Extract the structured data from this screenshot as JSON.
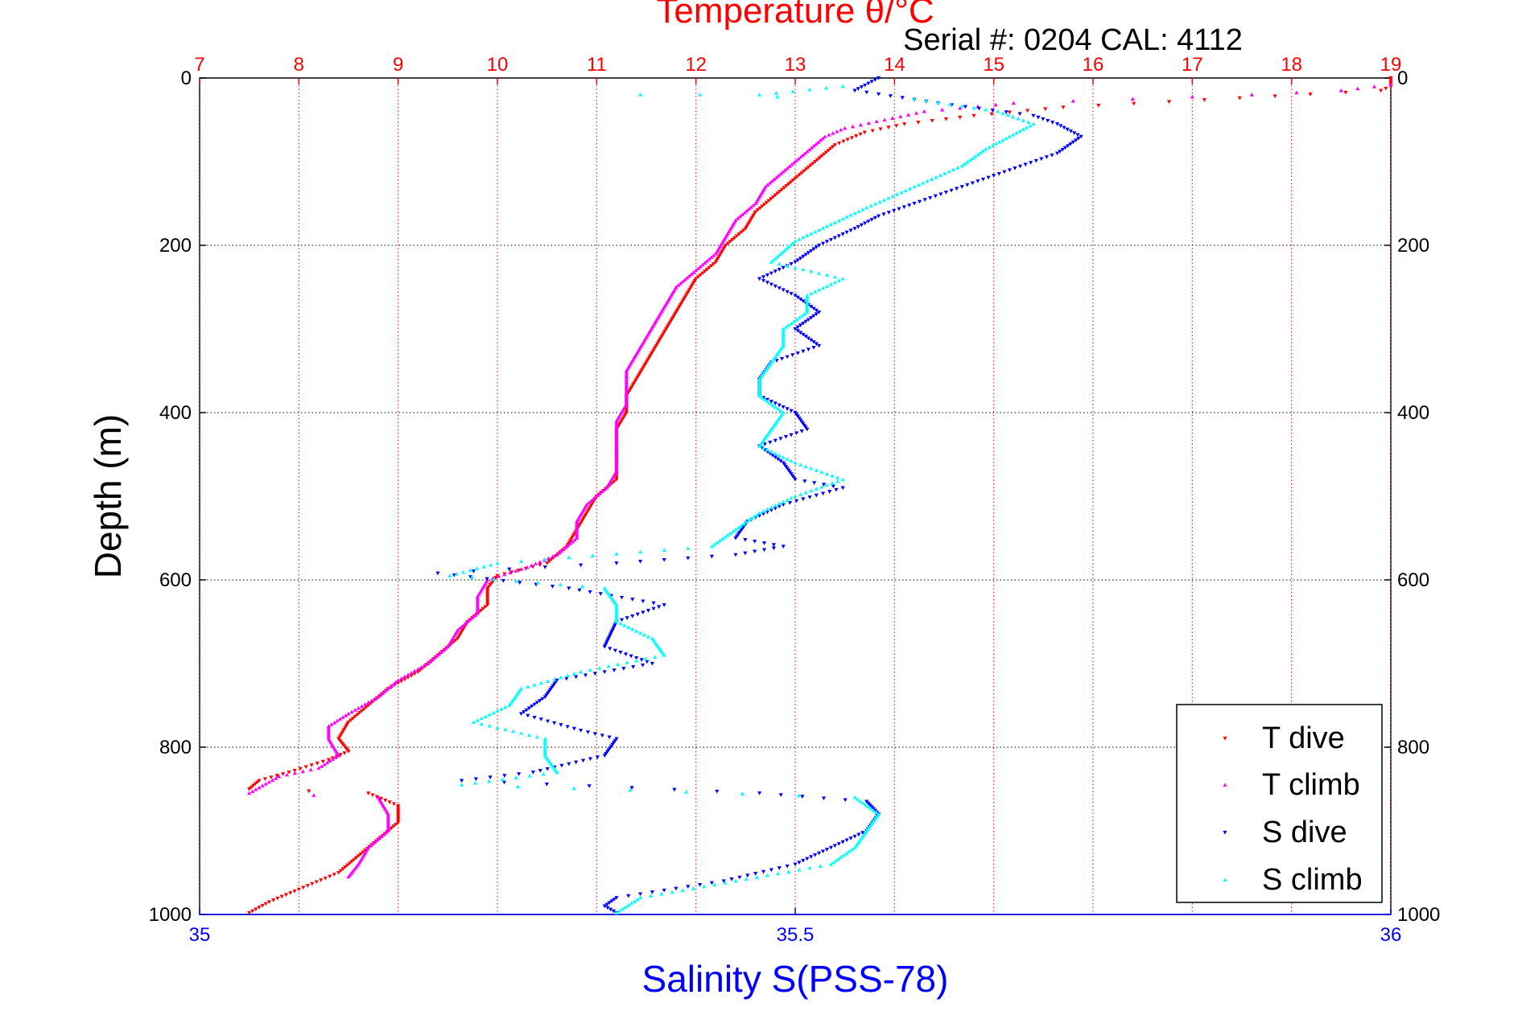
{
  "chart_data": {
    "type": "scatter",
    "title": "Temperature θ/°C",
    "subtitle": "Serial #: 0204  CAL: 4112",
    "ylabel": "Depth (m)",
    "xlabel": "Salinity S(PSS-78)",
    "top_axis": {
      "label": "Temperature θ/°C",
      "lim": [
        7,
        19
      ],
      "ticks": [
        "7",
        "8",
        "9",
        "10",
        "11",
        "12",
        "13",
        "14",
        "15",
        "16",
        "17",
        "18",
        "19"
      ],
      "color": "#ff0000"
    },
    "bottom_axis": {
      "label": "Salinity S(PSS-78)",
      "lim": [
        35,
        36
      ],
      "ticks": [
        "35",
        "35.5",
        "36"
      ],
      "color": "#0000ff"
    },
    "y_axis": {
      "lim": [
        0,
        1000
      ],
      "reversed": true,
      "ticks": [
        "0",
        "200",
        "400",
        "600",
        "800",
        "1000"
      ]
    },
    "grid": true,
    "legend": {
      "placement": "bottom-right",
      "entries": [
        "T dive",
        "T climb",
        "S dive",
        "S climb"
      ]
    },
    "series": [
      {
        "name": "T dive",
        "axis": "temperature",
        "color": "#ff0000",
        "marker": "triangle-down",
        "points": [
          [
            19,
            0
          ],
          [
            19,
            10
          ],
          [
            18.9,
            15
          ],
          [
            15.7,
            35
          ],
          [
            14.8,
            45
          ],
          [
            14.1,
            55
          ],
          [
            13.7,
            65
          ],
          [
            13.4,
            80
          ],
          [
            13.2,
            100
          ],
          [
            13.0,
            120
          ],
          [
            12.8,
            140
          ],
          [
            12.6,
            160
          ],
          [
            12.5,
            180
          ],
          [
            12.3,
            200
          ],
          [
            12.2,
            220
          ],
          [
            12.0,
            240
          ],
          [
            11.9,
            260
          ],
          [
            11.8,
            280
          ],
          [
            11.7,
            300
          ],
          [
            11.6,
            320
          ],
          [
            11.5,
            340
          ],
          [
            11.4,
            360
          ],
          [
            11.3,
            380
          ],
          [
            11.3,
            400
          ],
          [
            11.2,
            420
          ],
          [
            11.2,
            440
          ],
          [
            11.2,
            460
          ],
          [
            11.2,
            480
          ],
          [
            11.0,
            500
          ],
          [
            10.9,
            520
          ],
          [
            10.8,
            540
          ],
          [
            10.7,
            560
          ],
          [
            10.5,
            580
          ],
          [
            10.0,
            595
          ],
          [
            9.9,
            610
          ],
          [
            9.9,
            630
          ],
          [
            9.7,
            650
          ],
          [
            9.6,
            670
          ],
          [
            9.4,
            690
          ],
          [
            9.2,
            710
          ],
          [
            8.9,
            730
          ],
          [
            8.7,
            750
          ],
          [
            8.5,
            770
          ],
          [
            8.4,
            790
          ],
          [
            8.5,
            805
          ],
          [
            8.3,
            815
          ],
          [
            7.9,
            830
          ],
          [
            7.6,
            840
          ],
          [
            7.5,
            850
          ],
          [
            8.7,
            855
          ],
          [
            9.0,
            870
          ],
          [
            9.0,
            890
          ],
          [
            8.8,
            910
          ],
          [
            8.6,
            930
          ],
          [
            8.4,
            950
          ],
          [
            8.0,
            970
          ],
          [
            7.7,
            985
          ],
          [
            7.5,
            998
          ]
        ]
      },
      {
        "name": "T climb",
        "axis": "temperature",
        "color": "#ff00ff",
        "marker": "triangle-up",
        "points": [
          [
            19,
            8
          ],
          [
            18.5,
            15
          ],
          [
            17.6,
            20
          ],
          [
            16.4,
            25
          ],
          [
            15.2,
            30
          ],
          [
            14.3,
            40
          ],
          [
            13.9,
            50
          ],
          [
            13.5,
            60
          ],
          [
            13.3,
            70
          ],
          [
            13.1,
            90
          ],
          [
            12.9,
            110
          ],
          [
            12.7,
            130
          ],
          [
            12.6,
            150
          ],
          [
            12.4,
            170
          ],
          [
            12.3,
            190
          ],
          [
            12.2,
            210
          ],
          [
            12.0,
            230
          ],
          [
            11.8,
            250
          ],
          [
            11.7,
            270
          ],
          [
            11.6,
            290
          ],
          [
            11.5,
            310
          ],
          [
            11.4,
            330
          ],
          [
            11.3,
            350
          ],
          [
            11.3,
            370
          ],
          [
            11.3,
            390
          ],
          [
            11.2,
            410
          ],
          [
            11.2,
            430
          ],
          [
            11.2,
            450
          ],
          [
            11.2,
            470
          ],
          [
            11.1,
            490
          ],
          [
            10.9,
            510
          ],
          [
            10.8,
            530
          ],
          [
            10.8,
            550
          ],
          [
            10.6,
            570
          ],
          [
            10.3,
            585
          ],
          [
            9.9,
            600
          ],
          [
            9.8,
            620
          ],
          [
            9.8,
            640
          ],
          [
            9.6,
            660
          ],
          [
            9.5,
            680
          ],
          [
            9.3,
            700
          ],
          [
            9.0,
            720
          ],
          [
            8.8,
            740
          ],
          [
            8.5,
            760
          ],
          [
            8.3,
            775
          ],
          [
            8.3,
            790
          ],
          [
            8.4,
            810
          ],
          [
            8.2,
            825
          ],
          [
            7.8,
            835
          ],
          [
            7.5,
            855
          ],
          [
            8.8,
            860
          ],
          [
            8.9,
            880
          ],
          [
            8.9,
            900
          ],
          [
            8.7,
            920
          ],
          [
            8.6,
            940
          ],
          [
            8.5,
            955
          ]
        ]
      },
      {
        "name": "S dive",
        "axis": "salinity",
        "color": "#0000ff",
        "marker": "triangle-down",
        "points": [
          [
            35.57,
            0
          ],
          [
            35.55,
            15
          ],
          [
            35.62,
            30
          ],
          [
            35.7,
            45
          ],
          [
            35.72,
            55
          ],
          [
            35.74,
            70
          ],
          [
            35.72,
            90
          ],
          [
            35.68,
            110
          ],
          [
            35.64,
            130
          ],
          [
            35.6,
            150
          ],
          [
            35.57,
            165
          ],
          [
            35.55,
            180
          ],
          [
            35.52,
            200
          ],
          [
            35.5,
            220
          ],
          [
            35.47,
            240
          ],
          [
            35.5,
            260
          ],
          [
            35.52,
            280
          ],
          [
            35.5,
            300
          ],
          [
            35.52,
            320
          ],
          [
            35.48,
            340
          ],
          [
            35.47,
            360
          ],
          [
            35.47,
            380
          ],
          [
            35.5,
            400
          ],
          [
            35.51,
            420
          ],
          [
            35.47,
            440
          ],
          [
            35.49,
            460
          ],
          [
            35.5,
            480
          ],
          [
            35.54,
            490
          ],
          [
            35.49,
            510
          ],
          [
            35.46,
            530
          ],
          [
            35.45,
            550
          ],
          [
            35.49,
            560
          ],
          [
            35.45,
            570
          ],
          [
            35.35,
            580
          ],
          [
            35.2,
            592
          ],
          [
            35.31,
            610
          ],
          [
            35.39,
            630
          ],
          [
            35.35,
            650
          ],
          [
            35.34,
            680
          ],
          [
            35.38,
            700
          ],
          [
            35.34,
            710
          ],
          [
            35.3,
            720
          ],
          [
            35.29,
            740
          ],
          [
            35.27,
            760
          ],
          [
            35.32,
            780
          ],
          [
            35.35,
            790
          ],
          [
            35.34,
            810
          ],
          [
            35.31,
            820
          ],
          [
            35.28,
            830
          ],
          [
            35.22,
            840
          ],
          [
            35.47,
            855
          ],
          [
            35.56,
            865
          ],
          [
            35.57,
            880
          ],
          [
            35.56,
            900
          ],
          [
            35.53,
            920
          ],
          [
            35.5,
            940
          ],
          [
            35.44,
            960
          ],
          [
            35.35,
            980
          ],
          [
            35.34,
            990
          ],
          [
            35.35,
            998
          ]
        ]
      },
      {
        "name": "S climb",
        "axis": "salinity",
        "color": "#00ffff",
        "marker": "triangle-up",
        "points": [
          [
            35.54,
            10
          ],
          [
            35.47,
            20
          ],
          [
            35.37,
            20
          ],
          [
            35.6,
            25
          ],
          [
            35.67,
            40
          ],
          [
            35.7,
            55
          ],
          [
            35.68,
            70
          ],
          [
            35.66,
            85
          ],
          [
            35.64,
            105
          ],
          [
            35.6,
            130
          ],
          [
            35.56,
            155
          ],
          [
            35.53,
            175
          ],
          [
            35.5,
            195
          ],
          [
            35.48,
            220
          ],
          [
            35.54,
            240
          ],
          [
            35.51,
            260
          ],
          [
            35.51,
            280
          ],
          [
            35.49,
            300
          ],
          [
            35.49,
            320
          ],
          [
            35.48,
            340
          ],
          [
            35.47,
            360
          ],
          [
            35.47,
            380
          ],
          [
            35.49,
            400
          ],
          [
            35.48,
            420
          ],
          [
            35.47,
            440
          ],
          [
            35.5,
            460
          ],
          [
            35.54,
            480
          ],
          [
            35.5,
            500
          ],
          [
            35.47,
            520
          ],
          [
            35.45,
            540
          ],
          [
            35.43,
            560
          ],
          [
            35.25,
            580
          ],
          [
            35.21,
            595
          ],
          [
            35.34,
            610
          ],
          [
            35.35,
            630
          ],
          [
            35.35,
            650
          ],
          [
            35.38,
            670
          ],
          [
            35.39,
            690
          ],
          [
            35.32,
            710
          ],
          [
            35.27,
            730
          ],
          [
            35.26,
            750
          ],
          [
            35.23,
            770
          ],
          [
            35.29,
            790
          ],
          [
            35.29,
            810
          ],
          [
            35.3,
            830
          ],
          [
            35.22,
            845
          ],
          [
            35.55,
            860
          ],
          [
            35.57,
            880
          ],
          [
            35.56,
            900
          ],
          [
            35.55,
            920
          ],
          [
            35.53,
            940
          ],
          [
            35.45,
            960
          ],
          [
            35.37,
            980
          ],
          [
            35.35,
            998
          ]
        ]
      }
    ]
  }
}
